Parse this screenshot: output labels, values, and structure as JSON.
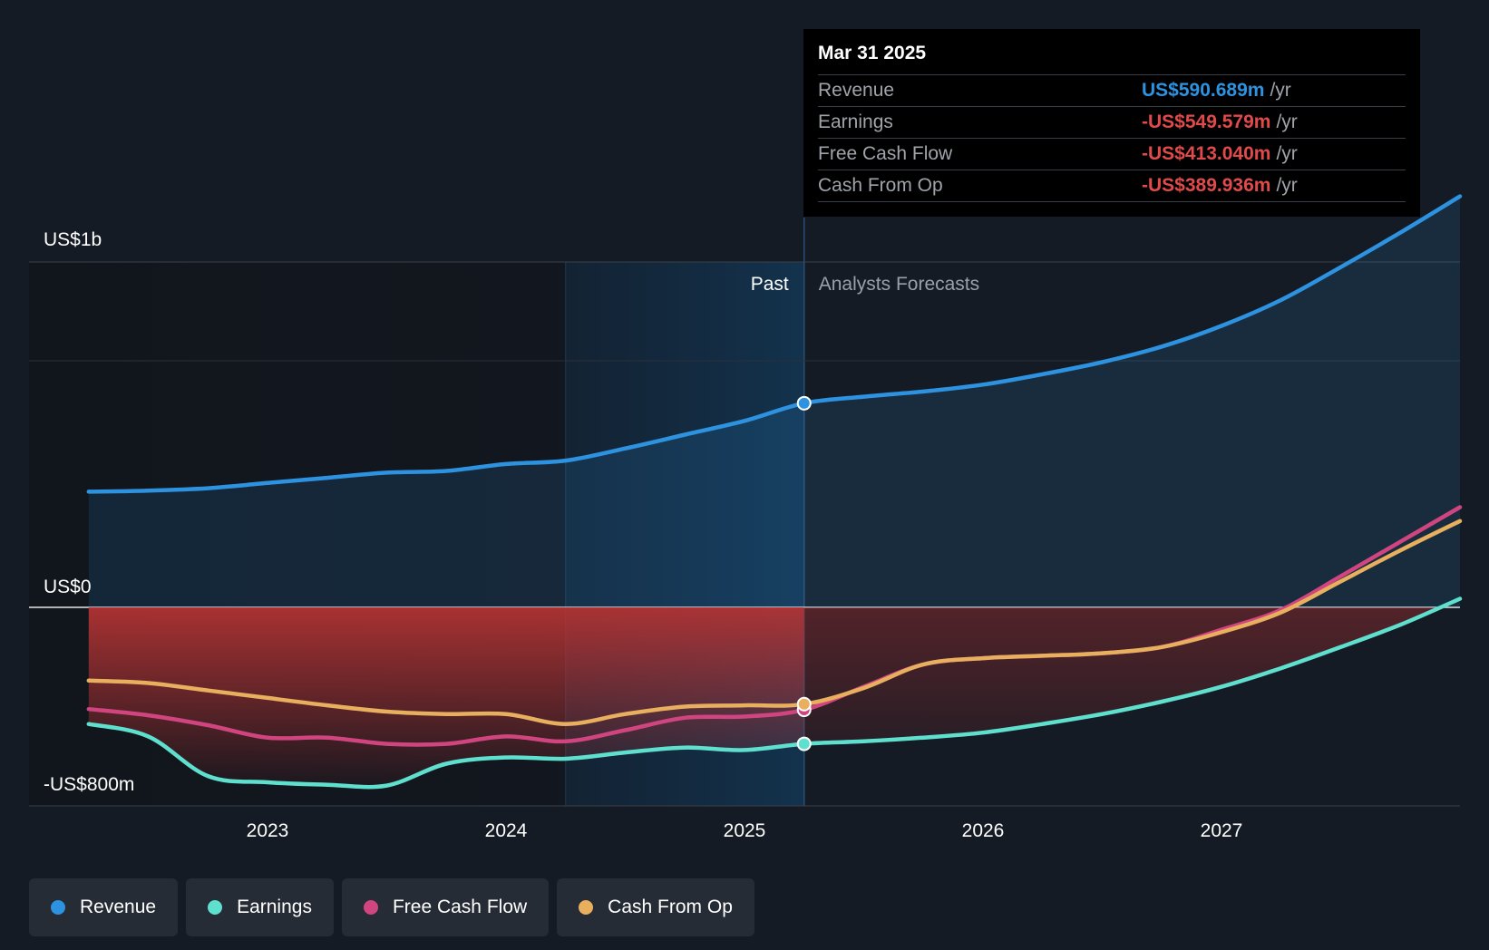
{
  "colors": {
    "revenue": "#2d93e0",
    "earnings": "#5fe0cf",
    "free_cash_flow": "#d0457f",
    "cash_from_op": "#e8b05e",
    "negative": "#e04a4a"
  },
  "tooltip": {
    "date": "Mar 31 2025",
    "rows": [
      {
        "label": "Revenue",
        "value": "US$590.689m",
        "unit": "/yr",
        "color": "#2d93e0"
      },
      {
        "label": "Earnings",
        "value": "-US$549.579m",
        "unit": "/yr",
        "color": "#e04a4a"
      },
      {
        "label": "Free Cash Flow",
        "value": "-US$413.040m",
        "unit": "/yr",
        "color": "#e04a4a"
      },
      {
        "label": "Cash From Op",
        "value": "-US$389.936m",
        "unit": "/yr",
        "color": "#e04a4a"
      }
    ]
  },
  "legend": [
    {
      "label": "Revenue",
      "color": "#2d93e0"
    },
    {
      "label": "Earnings",
      "color": "#5fe0cf"
    },
    {
      "label": "Free Cash Flow",
      "color": "#d0457f"
    },
    {
      "label": "Cash From Op",
      "color": "#e8b05e"
    }
  ],
  "chart_data": {
    "type": "line",
    "y_tick_labels": [
      "US$1b",
      "US$0",
      "-US$800m"
    ],
    "x_tick_labels": [
      "2023",
      "2024",
      "2025",
      "2026",
      "2027"
    ],
    "past_label": "Past",
    "forecast_label": "Analysts Forecasts",
    "ylim": [
      -800,
      1400
    ],
    "xlim": [
      2022.0,
      2028.0
    ],
    "grid": true,
    "legend_placement": "bottom-left",
    "highlight_x": 2025.25,
    "highlight_start_x": 2024.25,
    "series": [
      {
        "name": "Revenue",
        "key": "revenue",
        "x": [
          2022.25,
          2022.5,
          2022.75,
          2023.0,
          2023.25,
          2023.5,
          2023.75,
          2024.0,
          2024.25,
          2024.5,
          2024.75,
          2025.0,
          2025.25,
          2025.5,
          2025.75,
          2026.0,
          2026.25,
          2026.5,
          2026.75,
          2027.0,
          2027.25,
          2027.5,
          2027.75,
          2028.0
        ],
        "y": [
          335,
          338,
          345,
          360,
          375,
          390,
          395,
          415,
          425,
          460,
          500,
          540,
          591,
          610,
          625,
          645,
          675,
          710,
          755,
          815,
          890,
          985,
          1085,
          1190
        ]
      },
      {
        "name": "Earnings",
        "key": "earnings",
        "x": [
          2022.25,
          2022.5,
          2022.75,
          2023.0,
          2023.25,
          2023.5,
          2023.75,
          2024.0,
          2024.25,
          2024.5,
          2024.75,
          2025.0,
          2025.25,
          2025.5,
          2025.75,
          2026.0,
          2026.25,
          2026.5,
          2026.75,
          2027.0,
          2027.25,
          2027.5,
          2027.75,
          2028.0
        ],
        "y": [
          -470,
          -520,
          -680,
          -705,
          -715,
          -718,
          -630,
          -605,
          -610,
          -585,
          -565,
          -575,
          -550,
          -540,
          -525,
          -505,
          -470,
          -430,
          -380,
          -320,
          -245,
          -160,
          -70,
          25
        ]
      },
      {
        "name": "Free Cash Flow",
        "key": "free_cash_flow",
        "x": [
          2022.25,
          2022.5,
          2022.75,
          2023.0,
          2023.25,
          2023.5,
          2023.75,
          2024.0,
          2024.25,
          2024.5,
          2024.75,
          2025.0,
          2025.25,
          2025.5,
          2025.75,
          2026.0,
          2026.25,
          2026.5,
          2026.75,
          2027.0,
          2027.25,
          2027.5,
          2027.75,
          2028.0
        ],
        "y": [
          -410,
          -435,
          -475,
          -525,
          -525,
          -550,
          -550,
          -520,
          -540,
          -495,
          -445,
          -440,
          -413,
          -320,
          -230,
          -205,
          -195,
          -185,
          -160,
          -90,
          -10,
          90,
          190,
          290
        ]
      },
      {
        "name": "Cash From Op",
        "key": "cash_from_op",
        "x": [
          2022.25,
          2022.5,
          2022.75,
          2023.0,
          2023.25,
          2023.5,
          2023.75,
          2024.0,
          2024.25,
          2024.5,
          2024.75,
          2025.0,
          2025.25,
          2025.5,
          2025.75,
          2026.0,
          2026.25,
          2026.5,
          2026.75,
          2027.0,
          2027.25,
          2027.5,
          2027.75,
          2028.0
        ],
        "y": [
          -295,
          -305,
          -335,
          -365,
          -395,
          -420,
          -430,
          -430,
          -470,
          -430,
          -400,
          -395,
          -390,
          -325,
          -230,
          -205,
          -195,
          -185,
          -160,
          -100,
          -20,
          75,
          165,
          250
        ]
      }
    ]
  }
}
